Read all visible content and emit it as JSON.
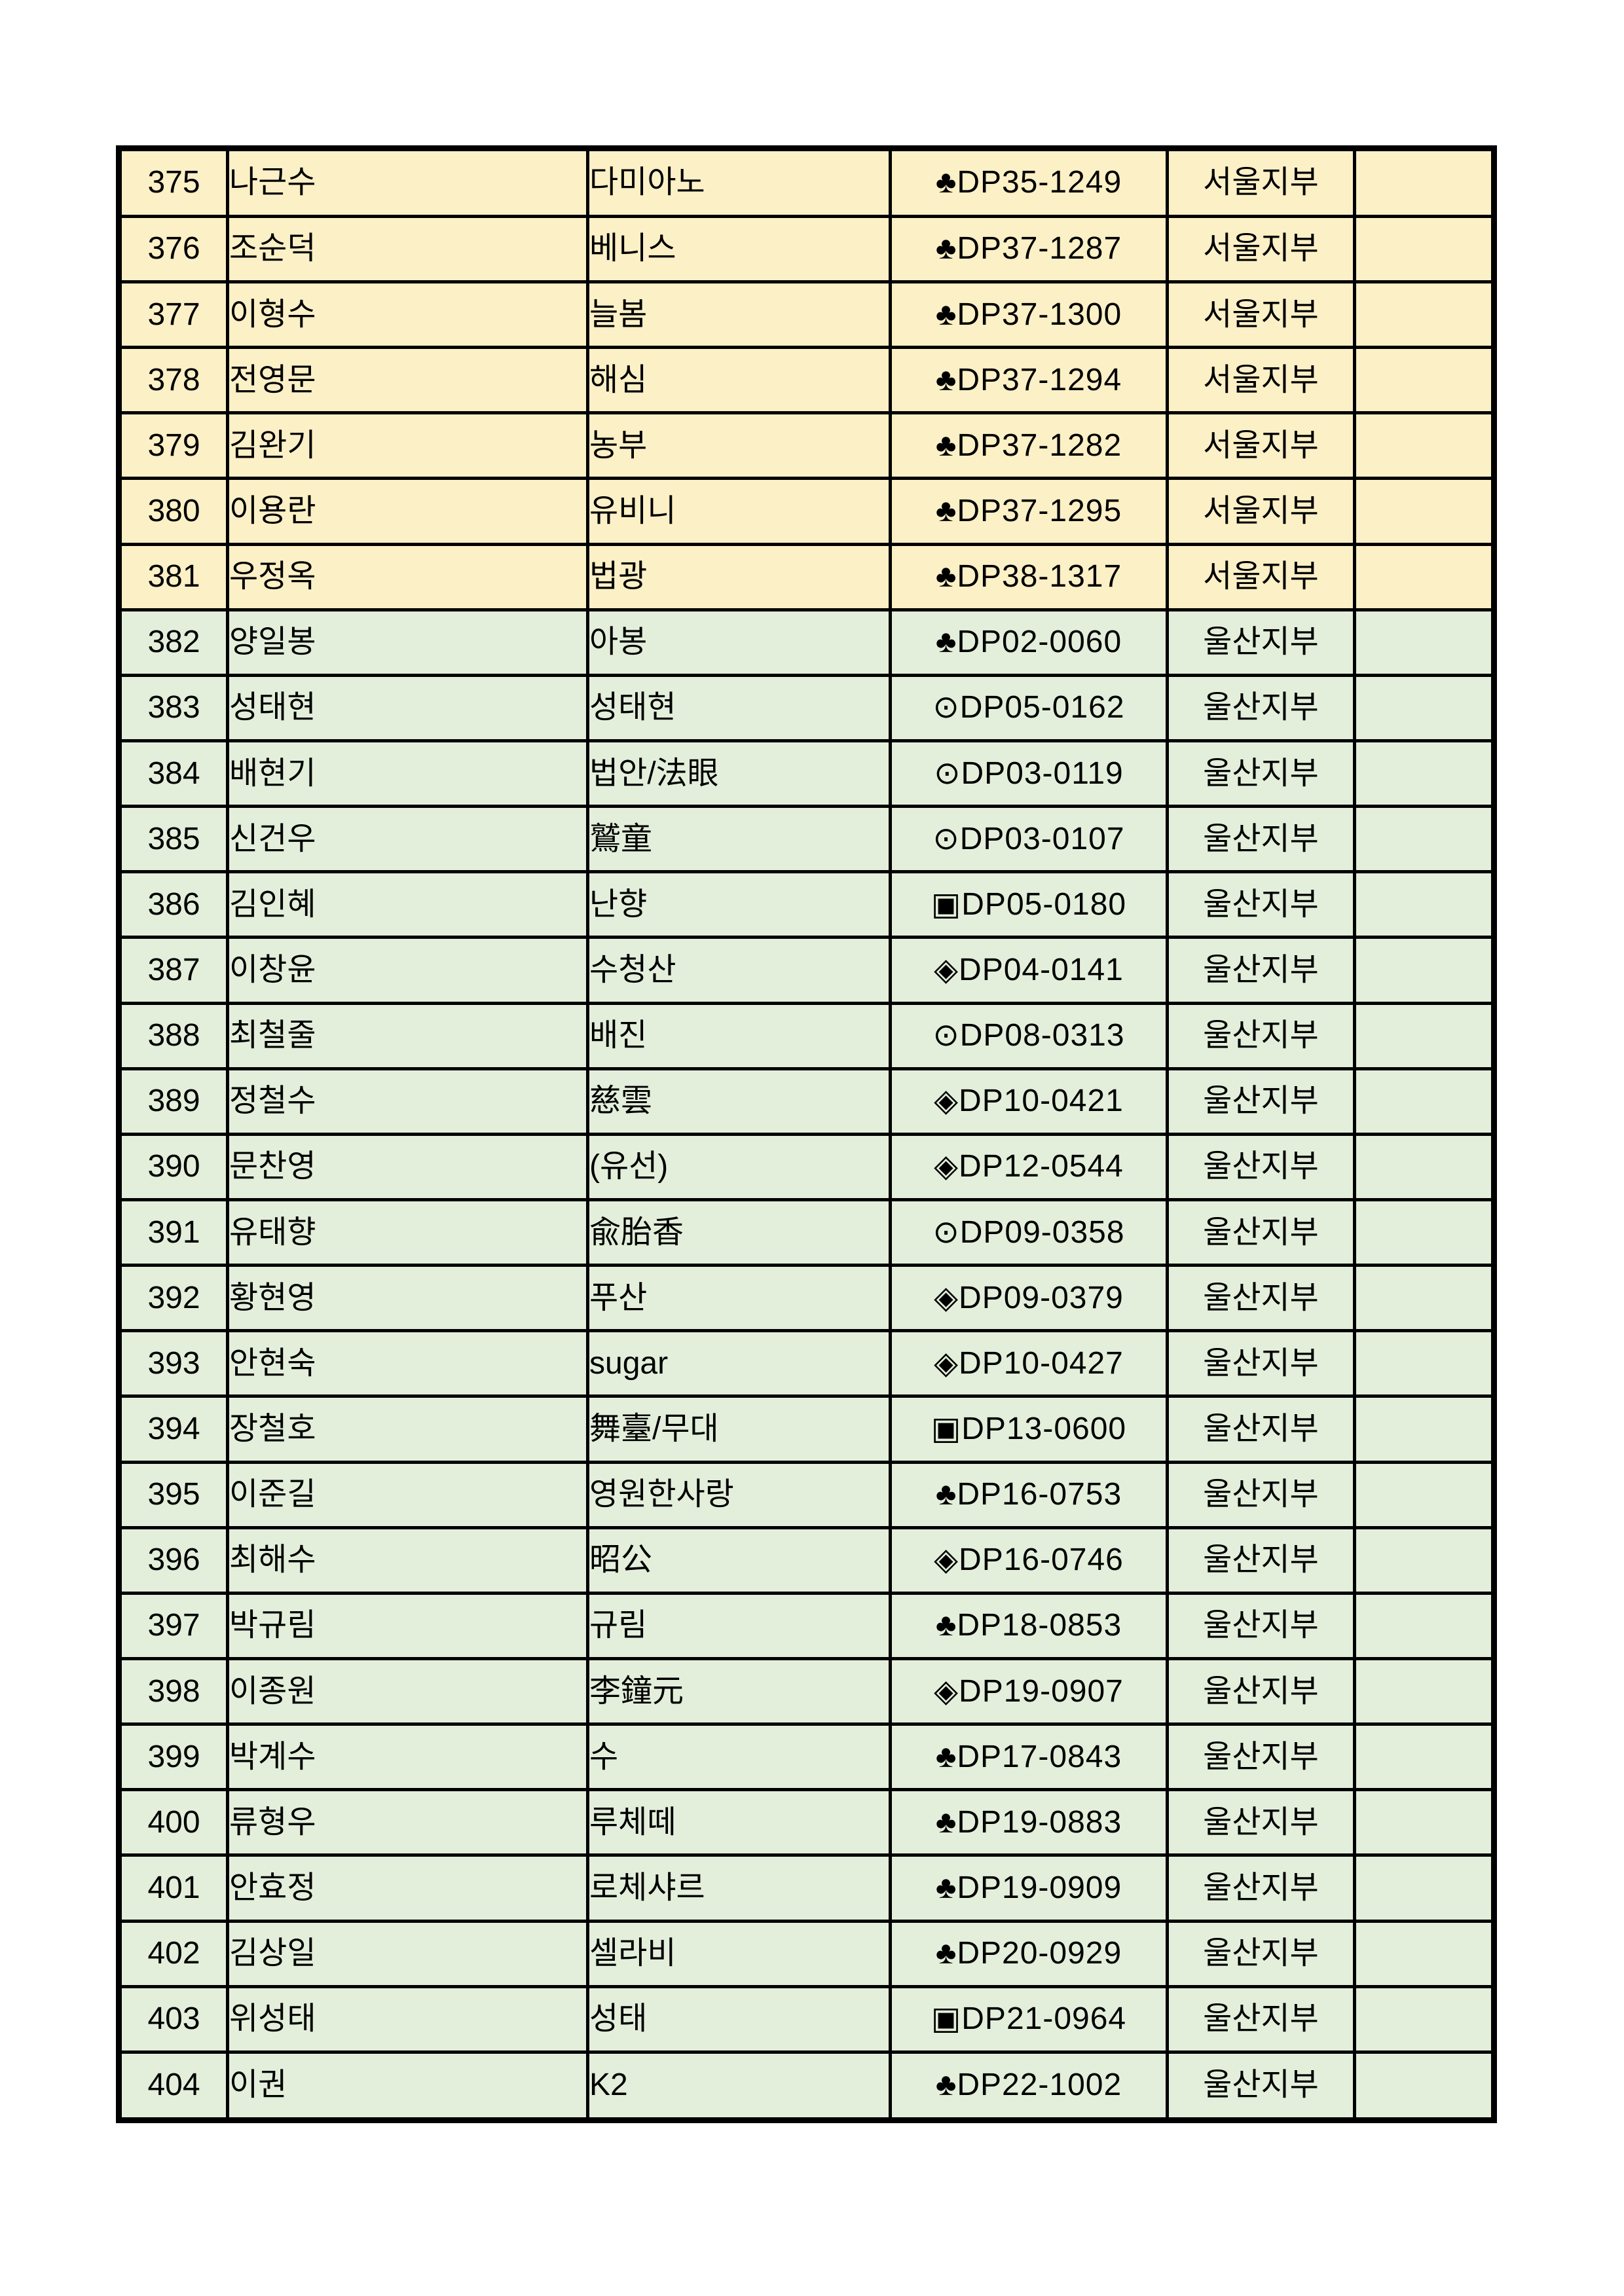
{
  "table": {
    "colors": {
      "seoul_row_bg": "#FCF0C6",
      "ulsan_row_bg": "#E3EFDB",
      "grid_line": "#000000",
      "text": "#000000"
    },
    "branch_labels": {
      "seoul": "서울지부",
      "ulsan": "울산지부"
    },
    "rows": [
      {
        "no": "375",
        "name": "나근수",
        "nickname": "다미아노",
        "code": "♣DP35-1249",
        "branch": "서울지부",
        "note": "",
        "region": "seoul"
      },
      {
        "no": "376",
        "name": "조순덕",
        "nickname": "베니스",
        "code": "♣DP37-1287",
        "branch": "서울지부",
        "note": "",
        "region": "seoul"
      },
      {
        "no": "377",
        "name": "이형수",
        "nickname": "늘봄",
        "code": "♣DP37-1300",
        "branch": "서울지부",
        "note": "",
        "region": "seoul"
      },
      {
        "no": "378",
        "name": "전영문",
        "nickname": "해심",
        "code": "♣DP37-1294",
        "branch": "서울지부",
        "note": "",
        "region": "seoul"
      },
      {
        "no": "379",
        "name": "김완기",
        "nickname": "농부",
        "code": "♣DP37-1282",
        "branch": "서울지부",
        "note": "",
        "region": "seoul"
      },
      {
        "no": "380",
        "name": "이용란",
        "nickname": "유비니",
        "code": "♣DP37-1295",
        "branch": "서울지부",
        "note": "",
        "region": "seoul"
      },
      {
        "no": "381",
        "name": "우정옥",
        "nickname": "법광",
        "code": "♣DP38-1317",
        "branch": "서울지부",
        "note": "",
        "region": "seoul"
      },
      {
        "no": "382",
        "name": "양일봉",
        "nickname": "아봉",
        "code": "♣DP02-0060",
        "branch": "울산지부",
        "note": "",
        "region": "ulsan"
      },
      {
        "no": "383",
        "name": "성태현",
        "nickname": "성태현",
        "code": "⊙DP05-0162",
        "branch": "울산지부",
        "note": "",
        "region": "ulsan"
      },
      {
        "no": "384",
        "name": "배현기",
        "nickname": "법안/法眼",
        "code": "⊙DP03-0119",
        "branch": "울산지부",
        "note": "",
        "region": "ulsan"
      },
      {
        "no": "385",
        "name": "신건우",
        "nickname": "鷲童",
        "code": "⊙DP03-0107",
        "branch": "울산지부",
        "note": "",
        "region": "ulsan"
      },
      {
        "no": "386",
        "name": "김인혜",
        "nickname": "난향",
        "code": "▣DP05-0180",
        "branch": "울산지부",
        "note": "",
        "region": "ulsan"
      },
      {
        "no": "387",
        "name": "이창윤",
        "nickname": "수청산",
        "code": "◈DP04-0141",
        "branch": "울산지부",
        "note": "",
        "region": "ulsan"
      },
      {
        "no": "388",
        "name": "최철줄",
        "nickname": "배진",
        "code": "⊙DP08-0313",
        "branch": "울산지부",
        "note": "",
        "region": "ulsan"
      },
      {
        "no": "389",
        "name": "정철수",
        "nickname": "慈雲",
        "code": "◈DP10-0421",
        "branch": "울산지부",
        "note": "",
        "region": "ulsan"
      },
      {
        "no": "390",
        "name": "문찬영",
        "nickname": "(유선)",
        "code": "◈DP12-0544",
        "branch": "울산지부",
        "note": "",
        "region": "ulsan"
      },
      {
        "no": "391",
        "name": "유태향",
        "nickname": "兪胎香",
        "code": "⊙DP09-0358",
        "branch": "울산지부",
        "note": "",
        "region": "ulsan"
      },
      {
        "no": "392",
        "name": "황현영",
        "nickname": "푸산",
        "code": "◈DP09-0379",
        "branch": "울산지부",
        "note": "",
        "region": "ulsan"
      },
      {
        "no": "393",
        "name": "안현숙",
        "nickname": "sugar",
        "code": "◈DP10-0427",
        "branch": "울산지부",
        "note": "",
        "region": "ulsan"
      },
      {
        "no": "394",
        "name": "장철호",
        "nickname": "舞臺/무대",
        "code": "▣DP13-0600",
        "branch": "울산지부",
        "note": "",
        "region": "ulsan"
      },
      {
        "no": "395",
        "name": "이준길",
        "nickname": "영원한사랑",
        "code": "♣DP16-0753",
        "branch": "울산지부",
        "note": "",
        "region": "ulsan"
      },
      {
        "no": "396",
        "name": "최해수",
        "nickname": "昭公",
        "code": "◈DP16-0746",
        "branch": "울산지부",
        "note": "",
        "region": "ulsan"
      },
      {
        "no": "397",
        "name": "박규림",
        "nickname": "규림",
        "code": "♣DP18-0853",
        "branch": "울산지부",
        "note": "",
        "region": "ulsan"
      },
      {
        "no": "398",
        "name": "이종원",
        "nickname": "李鐘元",
        "code": "◈DP19-0907",
        "branch": "울산지부",
        "note": "",
        "region": "ulsan"
      },
      {
        "no": "399",
        "name": "박계수",
        "nickname": "수",
        "code": "♣DP17-0843",
        "branch": "울산지부",
        "note": "",
        "region": "ulsan"
      },
      {
        "no": "400",
        "name": "류형우",
        "nickname": "루체떼",
        "code": "♣DP19-0883",
        "branch": "울산지부",
        "note": "",
        "region": "ulsan"
      },
      {
        "no": "401",
        "name": "안효정",
        "nickname": "로체샤르",
        "code": "♣DP19-0909",
        "branch": "울산지부",
        "note": "",
        "region": "ulsan"
      },
      {
        "no": "402",
        "name": "김상일",
        "nickname": "셀라비",
        "code": "♣DP20-0929",
        "branch": "울산지부",
        "note": "",
        "region": "ulsan"
      },
      {
        "no": "403",
        "name": "위성태",
        "nickname": "성태",
        "code": "▣DP21-0964",
        "branch": "울산지부",
        "note": "",
        "region": "ulsan"
      },
      {
        "no": "404",
        "name": "이권",
        "nickname": "K2",
        "code": "♣DP22-1002",
        "branch": "울산지부",
        "note": "",
        "region": "ulsan"
      }
    ]
  }
}
